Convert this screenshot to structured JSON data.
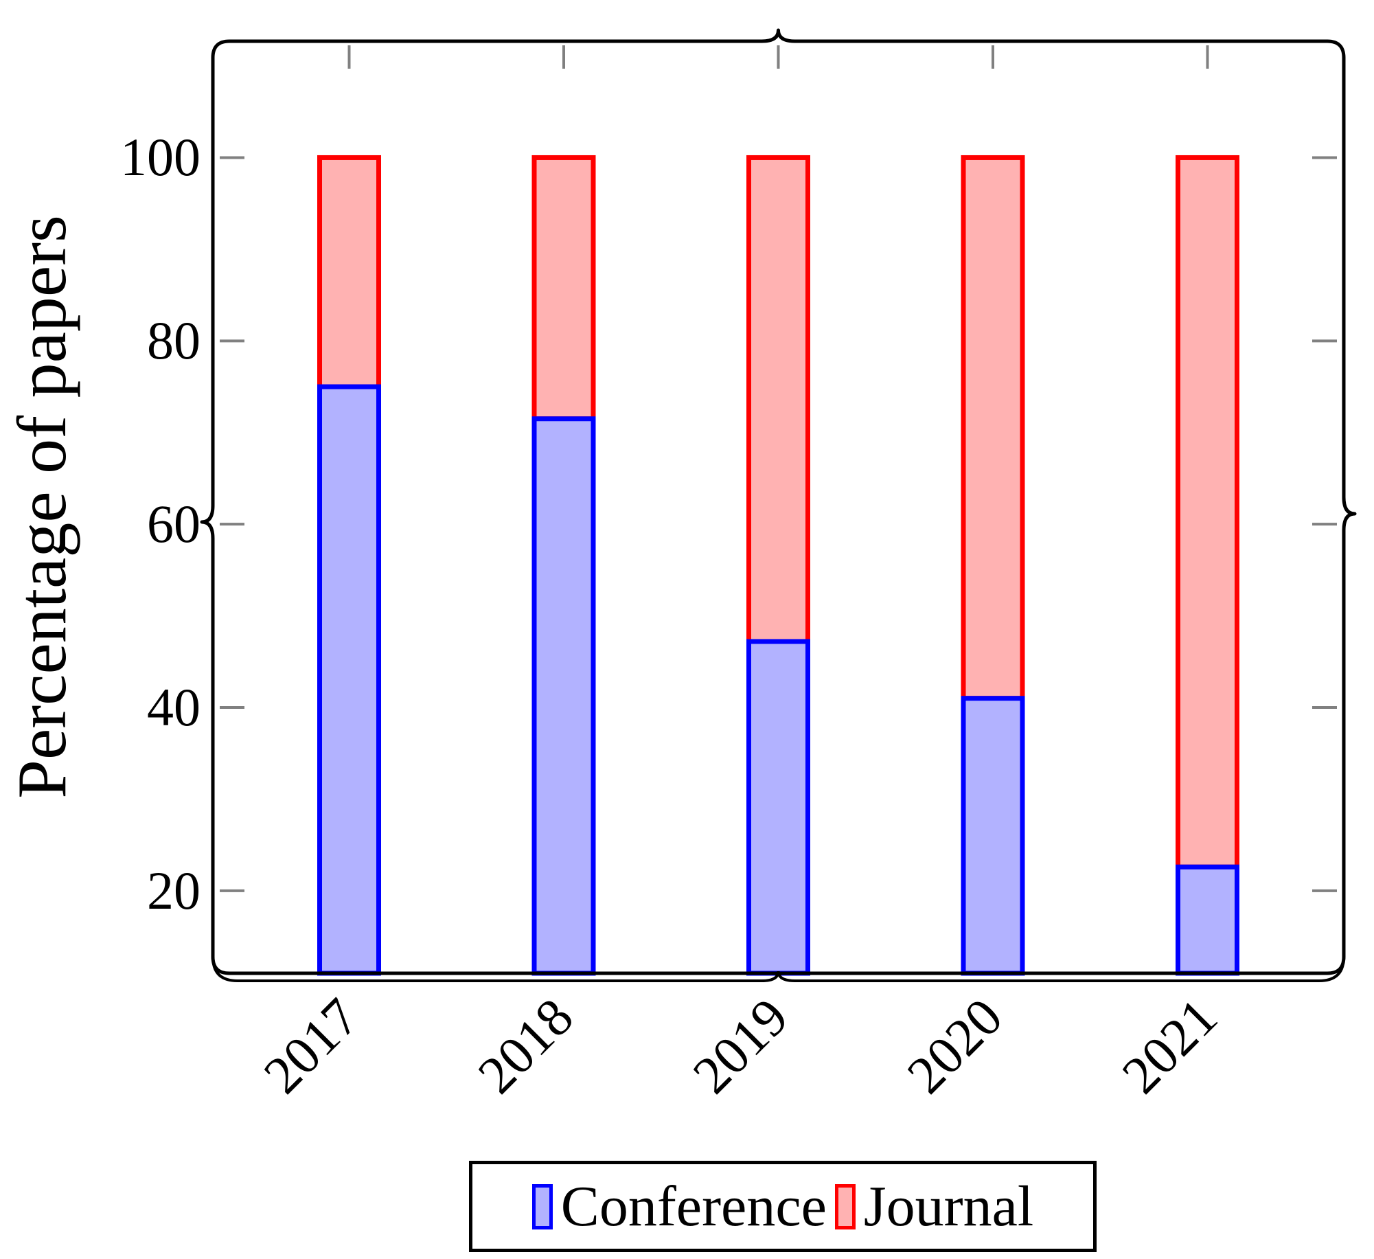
{
  "figure": {
    "background": "#ffffff"
  },
  "chart_data": {
    "type": "bar",
    "stacked": true,
    "orientation": "vertical",
    "title": "",
    "xlabel": "",
    "ylabel": "Percentage of papers",
    "categories": [
      "2017",
      "2018",
      "2019",
      "2020",
      "2021"
    ],
    "series": [
      {
        "name": "Conference",
        "border_color": "#0000ff",
        "fill_color": "#b2b2ff",
        "values": [
          75,
          71.5,
          47.2,
          41,
          22.6
        ]
      },
      {
        "name": "Journal",
        "border_color": "#ff0000",
        "fill_color": "#ffb2b2",
        "values": [
          25,
          28.5,
          52.8,
          59,
          77.4
        ]
      }
    ],
    "bar_total": 100,
    "yticks": [
      20,
      40,
      60,
      80,
      100
    ],
    "ylim": [
      11,
      112.7
    ],
    "grid": false,
    "legend_position": "below",
    "frame_style": "rounded-rectangle-with-brace-cusps",
    "frame_color": "#000000",
    "tick_color": "#808080"
  }
}
